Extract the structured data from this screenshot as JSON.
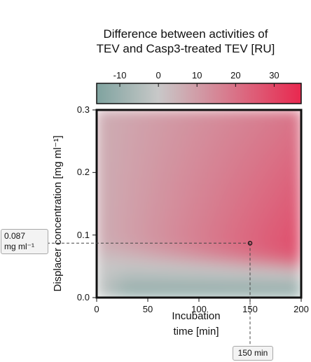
{
  "chart_data": {
    "type": "heatmap",
    "title_lines": [
      "Difference between activities of",
      "TEV and Casp3-treated TEV [RU]"
    ],
    "xlabel_lines": [
      "Incubation",
      "time [min]"
    ],
    "ylabel": "Displacer concentration [mg ml⁻¹]",
    "x_ticks": [
      "0",
      "50",
      "100",
      "150",
      "200"
    ],
    "x_tick_values": [
      0,
      50,
      100,
      150,
      200
    ],
    "y_ticks": [
      "0.0",
      "0.1",
      "0.2",
      "0.3"
    ],
    "y_tick_values": [
      0.0,
      0.1,
      0.2,
      0.3
    ],
    "xlim": [
      0,
      200
    ],
    "ylim": [
      0,
      0.3
    ],
    "colorbar": {
      "ticks": [
        "-10",
        "0",
        "10",
        "20",
        "30"
      ],
      "tick_values": [
        -10,
        0,
        10,
        20,
        30
      ],
      "range": [
        -16,
        37
      ],
      "colors": {
        "low": "#7fa39f",
        "mid": "#c8c8c8",
        "high": "#e8284f"
      }
    },
    "marker": {
      "x": 150,
      "y": 0.087,
      "x_callout": "150 min",
      "y_callout_lines": [
        "0.087",
        "mg ml⁻¹"
      ]
    }
  }
}
